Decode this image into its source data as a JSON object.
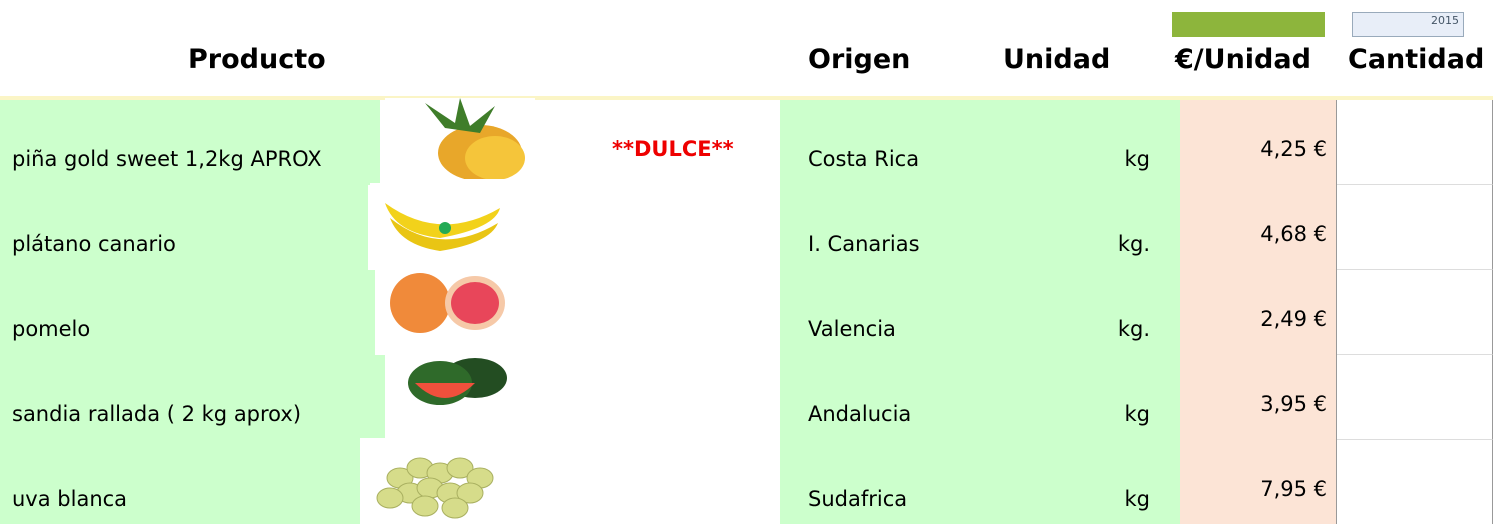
{
  "header": {
    "columns": [
      "Producto",
      "Origen",
      "Unidad",
      "€/Unidad",
      "Cantidad"
    ],
    "badge": "2015"
  },
  "table": {
    "rows": [
      {
        "producto": "piña gold sweet 1,2kg APROX",
        "nota": "**DULCE**",
        "origen": "Costa Rica",
        "unidad": "kg",
        "precio": "4,25 €"
      },
      {
        "producto": "plátano canario",
        "origen": "I. Canarias",
        "unidad": "kg.",
        "precio": "4,68 €"
      },
      {
        "producto": "pomelo",
        "origen": "Valencia",
        "unidad": "kg.",
        "precio": "2,49 €"
      },
      {
        "producto": "sandia rallada ( 2 kg aprox)",
        "origen": "Andalucia",
        "unidad": "kg",
        "precio": "3,95 €"
      },
      {
        "producto": "uva blanca",
        "origen": "Sudafrica",
        "unidad": "kg",
        "precio": "7,95 €"
      }
    ]
  }
}
